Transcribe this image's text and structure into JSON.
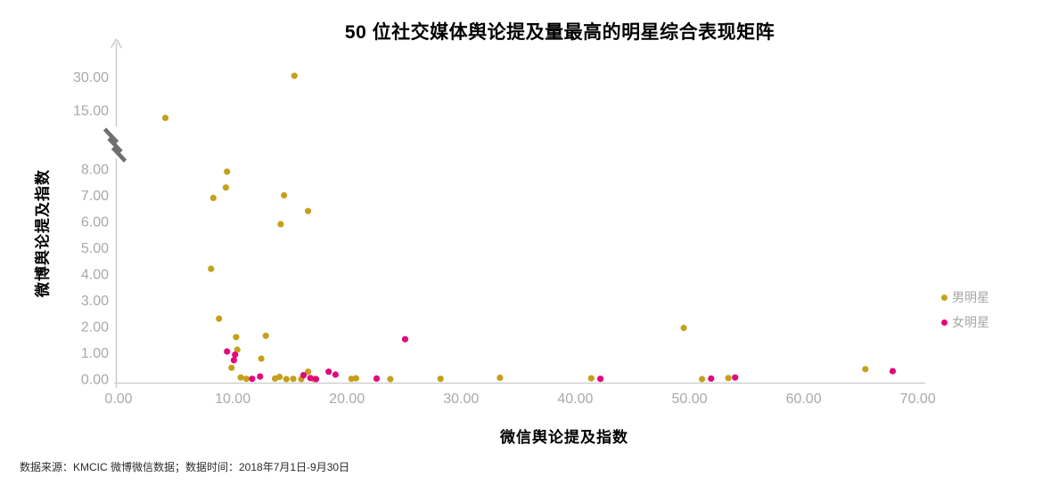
{
  "title": "50 位社交媒体舆论提及量最高的明星综合表现矩阵",
  "footer": "数据来源：KMCIC 微博微信数据；数据时间：2018年7月1日-9月30日",
  "colors": {
    "male": "#C5A01A",
    "female": "#E2077E",
    "axis_line": "#C9C9C9",
    "tick_label": "#A9A9A9",
    "break_mark": "#6F6F6F"
  },
  "chart_data": {
    "type": "scatter",
    "title": "50 位社交媒体舆论提及量最高的明星综合表现矩阵",
    "xlabel": "微信舆论提及指数",
    "ylabel": "微博舆论提及指数",
    "legend_position": "right",
    "grid": false,
    "x_ticks": [
      {
        "v": 0,
        "label": "0.00"
      },
      {
        "v": 10,
        "label": "10.00"
      },
      {
        "v": 20,
        "label": "20.00"
      },
      {
        "v": 30,
        "label": "30.00"
      },
      {
        "v": 40,
        "label": "40.00"
      },
      {
        "v": 50,
        "label": "50.00"
      },
      {
        "v": 60,
        "label": "60.00"
      },
      {
        "v": 70,
        "label": "70.00"
      }
    ],
    "y_ticks": [
      {
        "v": 0,
        "label": "0.00"
      },
      {
        "v": 1,
        "label": "1.00"
      },
      {
        "v": 2,
        "label": "2.00"
      },
      {
        "v": 3,
        "label": "3.00"
      },
      {
        "v": 4,
        "label": "4.00"
      },
      {
        "v": 5,
        "label": "5.00"
      },
      {
        "v": 6,
        "label": "6.00"
      },
      {
        "v": 7,
        "label": "7.00"
      },
      {
        "v": 8,
        "label": "8.00"
      },
      {
        "v": 15,
        "label": "15.00"
      },
      {
        "v": 30,
        "label": "30.00"
      }
    ],
    "y_axis_break": {
      "between": [
        8,
        15
      ]
    },
    "x_range": [
      0,
      70
    ],
    "series": [
      {
        "name": "男明星",
        "color": "#C5A01A",
        "points": [
          [
            15.4,
            30.6
          ],
          [
            4.1,
            14.1
          ],
          [
            9.5,
            7.9
          ],
          [
            9.4,
            7.3
          ],
          [
            8.3,
            6.9
          ],
          [
            14.5,
            7.0
          ],
          [
            16.6,
            6.4
          ],
          [
            14.2,
            5.9
          ],
          [
            8.1,
            4.2
          ],
          [
            8.8,
            2.3
          ],
          [
            10.3,
            1.6
          ],
          [
            12.9,
            1.65
          ],
          [
            10.4,
            1.12
          ],
          [
            12.5,
            0.78
          ],
          [
            9.9,
            0.43
          ],
          [
            10.7,
            0.06
          ],
          [
            11.2,
            0.01
          ],
          [
            13.7,
            0.02
          ],
          [
            14.1,
            0.08
          ],
          [
            14.7,
            0.0
          ],
          [
            15.3,
            0.01
          ],
          [
            16.0,
            0.0
          ],
          [
            16.6,
            0.28
          ],
          [
            17.1,
            0.0
          ],
          [
            20.4,
            0.01
          ],
          [
            20.8,
            0.03
          ],
          [
            23.8,
            0.0
          ],
          [
            28.2,
            0.01
          ],
          [
            33.4,
            0.05
          ],
          [
            41.4,
            0.03
          ],
          [
            49.5,
            1.95
          ],
          [
            51.1,
            0.0
          ],
          [
            53.4,
            0.04
          ],
          [
            65.4,
            0.38
          ]
        ]
      },
      {
        "name": "女明星",
        "color": "#E2077E",
        "points": [
          [
            9.5,
            1.05
          ],
          [
            10.2,
            0.93
          ],
          [
            10.1,
            0.72
          ],
          [
            11.7,
            0.01
          ],
          [
            12.4,
            0.1
          ],
          [
            16.2,
            0.15
          ],
          [
            16.8,
            0.04
          ],
          [
            17.3,
            0.0
          ],
          [
            18.4,
            0.28
          ],
          [
            19.0,
            0.17
          ],
          [
            22.6,
            0.02
          ],
          [
            25.1,
            1.52
          ],
          [
            42.2,
            0.01
          ],
          [
            51.9,
            0.02
          ],
          [
            54.0,
            0.06
          ],
          [
            67.8,
            0.3
          ]
        ]
      }
    ]
  }
}
